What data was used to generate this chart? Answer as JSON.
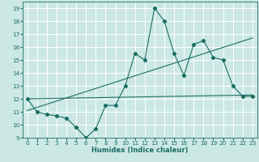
{
  "xlabel": "Humidex (Indice chaleur)",
  "bg_color": "#cce8e5",
  "grid_color": "#ffffff",
  "line_color": "#1a6e64",
  "xlim": [
    -0.5,
    23.5
  ],
  "ylim": [
    9,
    19.5
  ],
  "xticks": [
    0,
    1,
    2,
    3,
    4,
    5,
    6,
    7,
    8,
    9,
    10,
    11,
    12,
    13,
    14,
    15,
    16,
    17,
    18,
    19,
    20,
    21,
    22,
    23
  ],
  "yticks": [
    9,
    10,
    11,
    12,
    13,
    14,
    15,
    16,
    17,
    18,
    19
  ],
  "line1_x": [
    0,
    1,
    2,
    3,
    4,
    5,
    6,
    7,
    8,
    9,
    10,
    11,
    12,
    13,
    14,
    15,
    16,
    17,
    18,
    19,
    20,
    21,
    22,
    23
  ],
  "line1_y": [
    12,
    11,
    10.8,
    10.7,
    10.5,
    9.8,
    9.0,
    9.7,
    11.5,
    11.5,
    13.0,
    15.5,
    15.0,
    19.0,
    18.0,
    15.5,
    13.8,
    16.2,
    16.5,
    15.2,
    15.0,
    13.0,
    12.2,
    12.2
  ],
  "line2_x": [
    0,
    23
  ],
  "line2_y": [
    11.1,
    16.7
  ],
  "line3_x": [
    0,
    23
  ],
  "line3_y": [
    12.0,
    12.3
  ],
  "xlabel_fontsize": 6.0,
  "tick_fontsize": 5.2
}
